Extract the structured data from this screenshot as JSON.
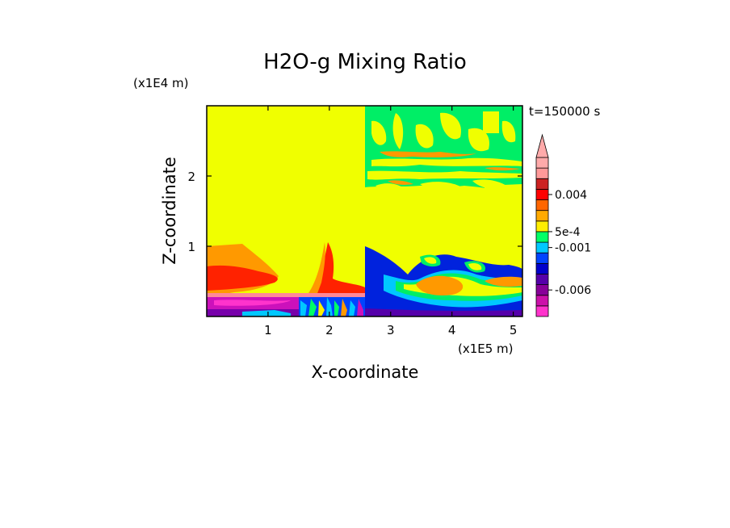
{
  "chart_data": {
    "type": "heatmap",
    "title": "H2O-g Mixing Ratio",
    "xlabel": "X-coordinate",
    "ylabel": "Z-coordinate",
    "x_unit": "(x1E5 m)",
    "y_unit": "(x1E4 m)",
    "time_label": "t=150000 s",
    "xlim": [
      0,
      5.15
    ],
    "ylim": [
      0,
      3.0
    ],
    "x_ticks": [
      {
        "value": 1,
        "label": "1"
      },
      {
        "value": 2,
        "label": "2"
      },
      {
        "value": 3,
        "label": "3"
      },
      {
        "value": 4,
        "label": "4"
      },
      {
        "value": 5,
        "label": "5"
      }
    ],
    "y_ticks": [
      {
        "value": 1,
        "label": "1"
      },
      {
        "value": 2,
        "label": "2"
      }
    ],
    "colorbar": {
      "colors": [
        "#ff33cc",
        "#cc11aa",
        "#880099",
        "#5500aa",
        "#0000cc",
        "#0044ff",
        "#00c8ff",
        "#00ff66",
        "#ffee00",
        "#ffaa00",
        "#ff6600",
        "#ff0000",
        "#cc2222",
        "#ff9999",
        "#ffaaaa"
      ],
      "labels": [
        {
          "slot": 2.5,
          "label": "-0.006"
        },
        {
          "slot": 6.5,
          "label": "-0.001"
        },
        {
          "slot": 8.0,
          "label": "5e-4"
        },
        {
          "slot": 11.5,
          "label": "0.004"
        }
      ]
    },
    "regions": [
      {
        "name": "background-yellow",
        "color": "#f0ff00"
      },
      {
        "name": "green-upper-right",
        "color": "#00ee66"
      },
      {
        "name": "orange-left-plume",
        "color": "#ff9900"
      },
      {
        "name": "red-left-plume",
        "color": "#ff2200"
      },
      {
        "name": "pink-surface-layer",
        "color": "#ff8899"
      },
      {
        "name": "magenta-boundary-layer",
        "color": "#cc11bb"
      },
      {
        "name": "blue-right-lower",
        "color": "#0022dd"
      },
      {
        "name": "orange-right-blob",
        "color": "#ff9900"
      }
    ]
  }
}
